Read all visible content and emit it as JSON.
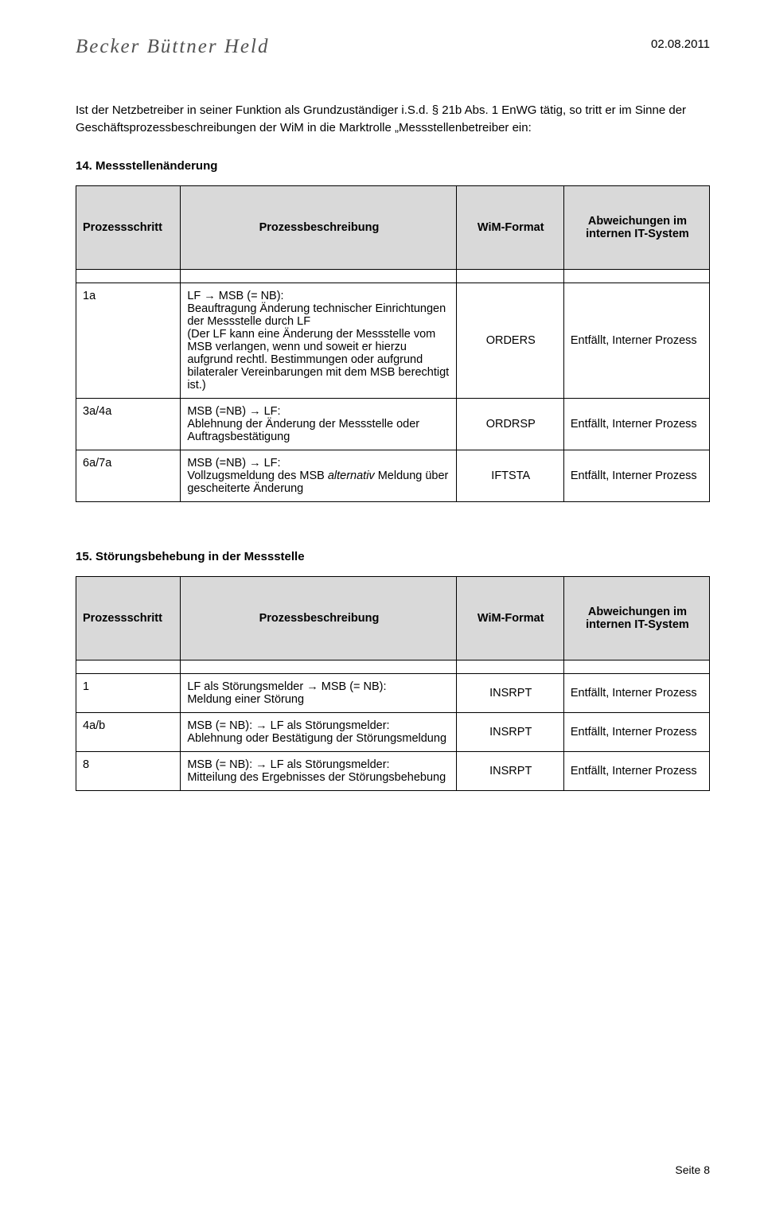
{
  "header": {
    "logo_text": "Becker Büttner Held",
    "date": "02.08.2011"
  },
  "intro_text": "Ist der Netzbetreiber in seiner Funktion als Grundzuständiger i.S.d. § 21b Abs. 1 EnWG tätig, so tritt er im Sinne der Geschäftsprozessbeschreibungen der WiM in die Marktrolle „Messstellenbetreiber ein:",
  "section14": {
    "heading": "14.   Messstellenänderung",
    "cols": {
      "c1": "Prozessschritt",
      "c2": "Prozessbeschreibung",
      "c3": "WiM-Format",
      "c4": "Abweichungen im internen IT-System"
    },
    "rows": [
      {
        "step": "1a",
        "desc": "LF → MSB (= NB):\nBeauftragung Änderung technischer Einrichtungen der Messstelle durch LF\n(Der LF kann eine Änderung der Messstelle vom MSB verlangen, wenn und soweit er hierzu aufgrund rechtl. Bestimmungen oder aufgrund bilateraler Vereinbarungen mit dem MSB berechtigt ist.)",
        "format": "ORDERS",
        "dev": "Entfällt, Interner Prozess"
      },
      {
        "step": "3a/4a",
        "desc": "MSB (=NB) → LF:\nAblehnung der Änderung der Messstelle oder Auftragsbestätigung",
        "format": "ORDRSP",
        "dev": "Entfällt, Interner Prozess"
      },
      {
        "step": "6a/7a",
        "desc_pre": "MSB (=NB) → LF:\nVollzugsmeldung des MSB ",
        "desc_em": "alternativ",
        "desc_post": " Meldung über gescheiterte Änderung",
        "format": "IFTSTA",
        "dev": "Entfällt, Interner Prozess"
      }
    ]
  },
  "section15": {
    "heading": "15.   Störungsbehebung in der Messstelle",
    "cols": {
      "c1": "Prozessschritt",
      "c2": "Prozessbeschreibung",
      "c3": "WiM-Format",
      "c4": "Abweichungen im internen IT-System"
    },
    "rows": [
      {
        "step": "1",
        "desc": "LF als Störungsmelder → MSB (= NB):\nMeldung einer Störung",
        "format": "INSRPT",
        "dev": "Entfällt, Interner Prozess"
      },
      {
        "step": "4a/b",
        "desc": "MSB (= NB): → LF als Störungsmelder:\nAblehnung oder Bestätigung der Störungsmeldung",
        "format": "INSRPT",
        "dev": "Entfällt, Interner Prozess"
      },
      {
        "step": "8",
        "desc": "MSB (= NB): → LF als Störungsmelder:\nMitteilung des Ergebnisses der Störungsbehebung",
        "format": "INSRPT",
        "dev": "Entfällt, Interner Prozess"
      }
    ]
  },
  "footer": "Seite 8"
}
